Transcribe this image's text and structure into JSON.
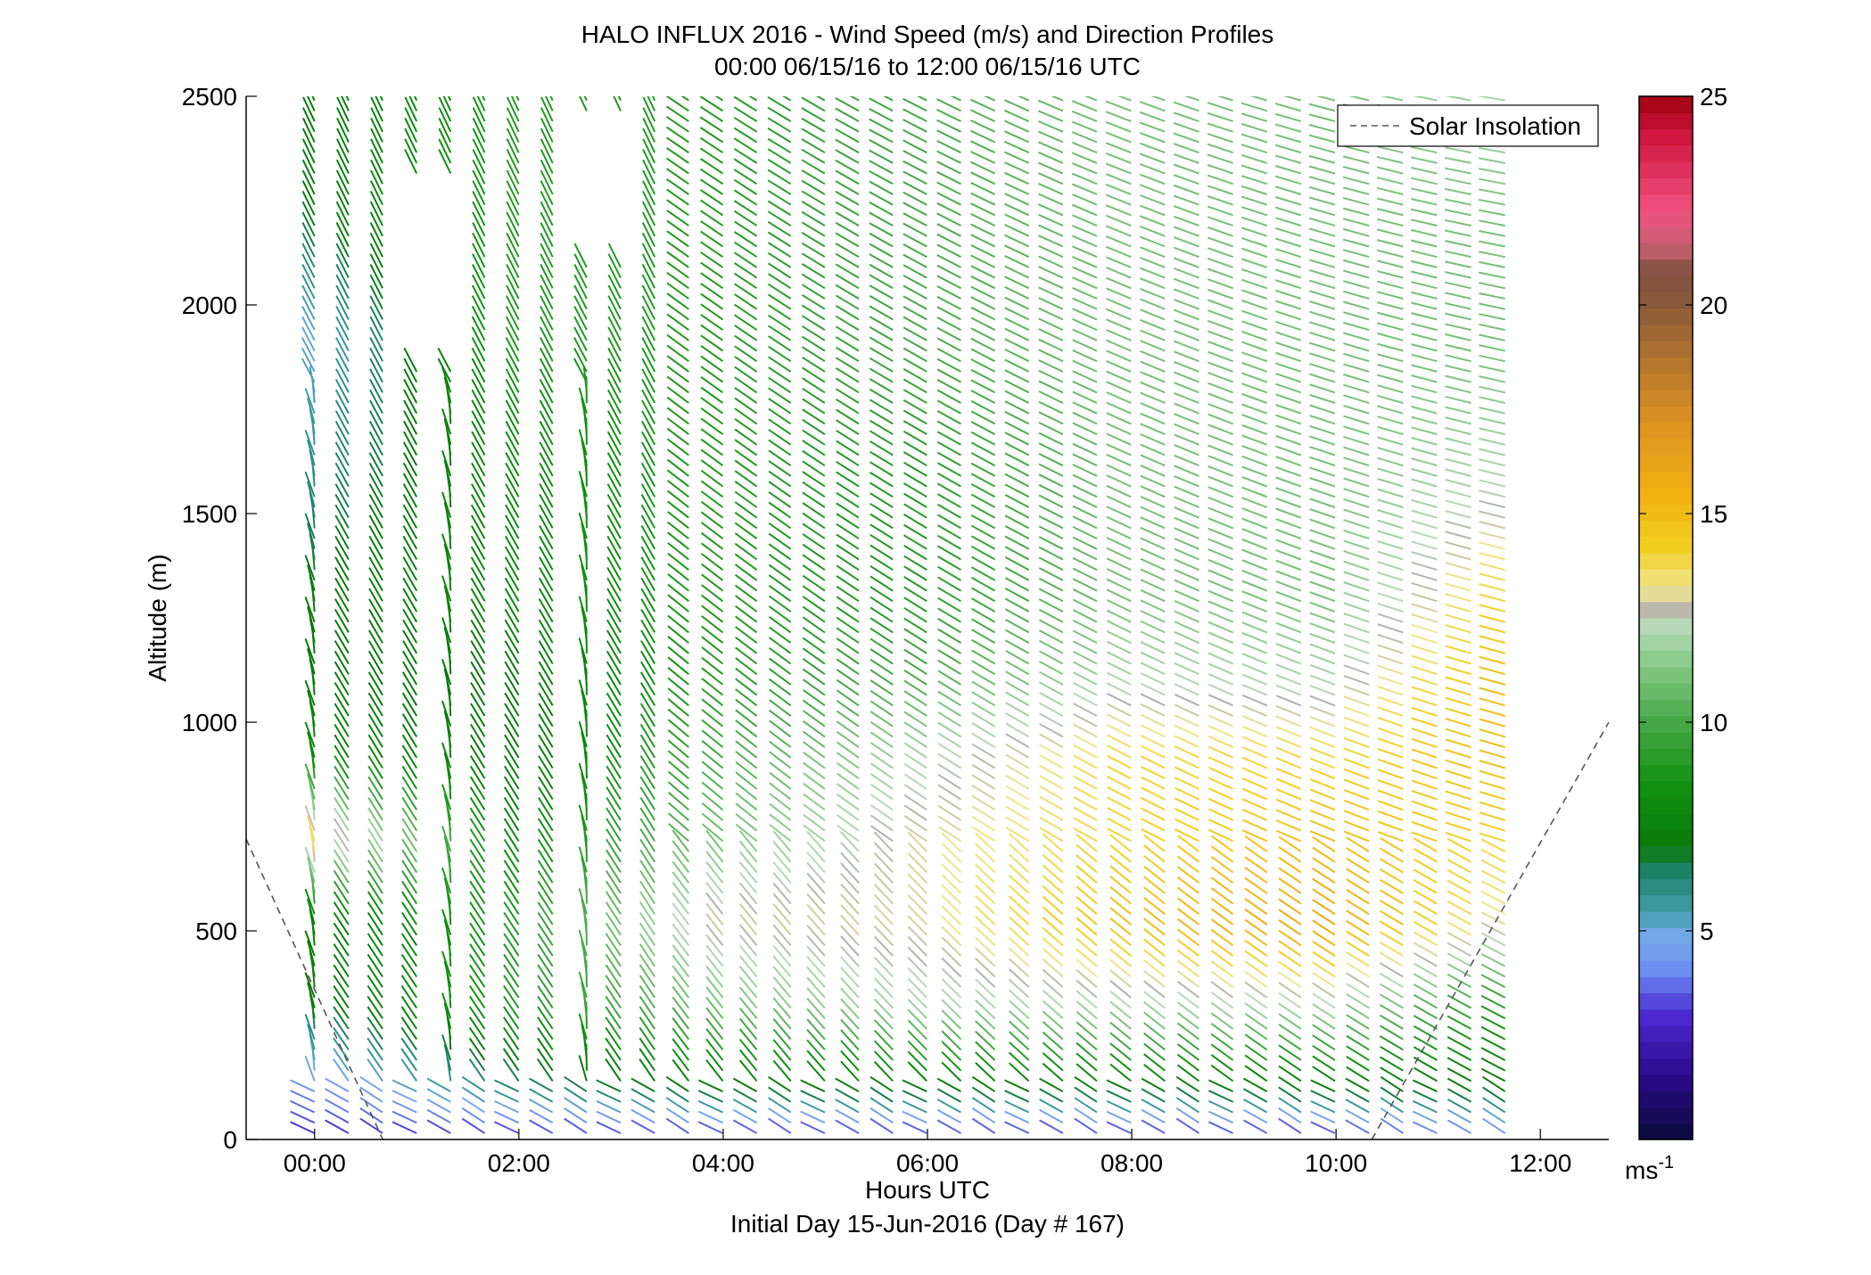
{
  "chart_data": {
    "type": "quiver",
    "title": "HALO INFLUX 2016 - Wind Speed (m/s) and Direction Profiles",
    "subtitle": "00:00 06/15/16 to 12:00 06/15/16  UTC",
    "xlabel": "Hours UTC",
    "xlabel2": "Initial Day 15-Jun-2016 (Day # 167)",
    "ylabel": "Altitude (m)",
    "x_ticks": [
      "00:00",
      "02:00",
      "04:00",
      "06:00",
      "08:00",
      "10:00",
      "12:00"
    ],
    "y_ticks": [
      "0",
      "500",
      "1000",
      "1500",
      "2000",
      "2500"
    ],
    "xlim_hours": [
      -0.67,
      12.67
    ],
    "ylim": [
      0,
      2500
    ],
    "colorbar": {
      "range": [
        0,
        25
      ],
      "ticks": [
        "5",
        "10",
        "15",
        "20",
        "25"
      ],
      "unit_label": "ms",
      "unit_exponent": "-1"
    },
    "legend": {
      "position": "top-right",
      "entries": [
        {
          "label": "Solar Insolation",
          "style": "dashed",
          "color": "#555555"
        }
      ]
    },
    "solar_insolation": [
      {
        "x_hours": -0.67,
        "alt": 720
      },
      {
        "x_hours": 0.72,
        "alt": 100
      },
      {
        "x_hours": 10.35,
        "alt": 0
      },
      {
        "x_hours": 12.67,
        "alt": 1000
      }
    ],
    "time_steps_hours": {
      "start": 0.0,
      "end": 11.67,
      "step": 0.333
    },
    "altitude_levels_m": {
      "start": 0,
      "end": 2500,
      "step": 25
    },
    "wind_regimes_note": "speed shown by colour; direction shown by arrow orientation",
    "series": [
      {
        "hour": 0.0,
        "speed_ms": [
          3,
          4,
          7,
          7,
          14,
          8,
          7,
          7,
          6,
          5,
          7,
          7
        ]
      },
      {
        "hour": 2.0,
        "speed_ms": [
          3,
          6,
          9,
          9,
          8,
          7,
          7,
          8,
          8,
          9,
          9,
          9
        ]
      },
      {
        "hour": 4.0,
        "speed_ms": [
          3,
          7,
          11,
          13,
          11,
          10,
          9,
          9,
          9,
          9,
          9,
          9
        ]
      },
      {
        "hour": 6.0,
        "speed_ms": [
          3,
          7,
          12,
          13,
          13,
          12,
          10,
          9,
          9,
          10,
          10,
          10
        ]
      },
      {
        "hour": 8.0,
        "speed_ms": [
          3,
          7,
          12,
          15,
          14,
          14,
          12,
          11,
          11,
          11,
          11,
          11
        ]
      },
      {
        "hour": 10.0,
        "speed_ms": [
          3,
          7,
          12,
          16,
          15,
          14,
          12,
          11,
          11,
          11,
          11,
          11
        ]
      },
      {
        "hour": 11.67,
        "speed_ms": [
          4,
          7,
          9,
          13,
          14,
          15,
          15,
          14,
          12,
          11,
          11,
          12
        ]
      }
    ],
    "speed_altitudes_m": [
      0,
      100,
      300,
      500,
      700,
      900,
      1100,
      1300,
      1600,
      1900,
      2200,
      2500
    ]
  }
}
